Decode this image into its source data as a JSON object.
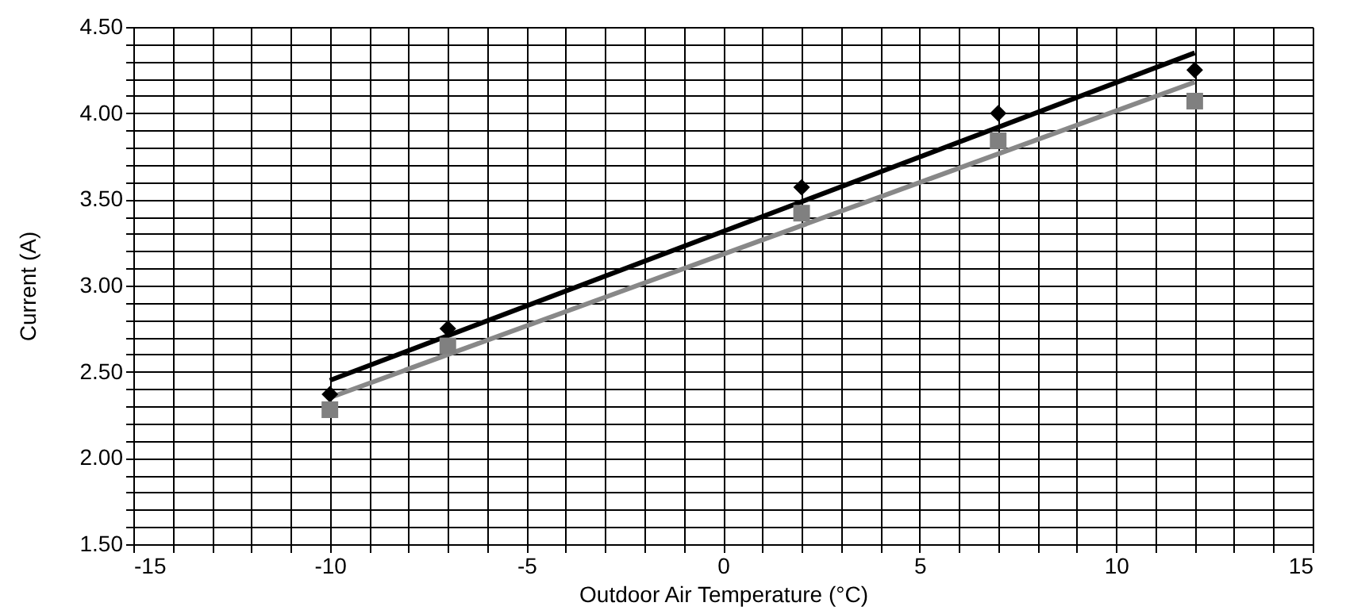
{
  "chart_data": {
    "type": "scatter",
    "xlabel": "Outdoor Air Temperature (°C)",
    "ylabel": "Current (A)",
    "xlim": [
      -15,
      15
    ],
    "ylim": [
      1.5,
      4.5
    ],
    "xticks": [
      -15,
      {
        "value": -14,
        "label": null
      },
      {
        "value": -13,
        "label": null
      },
      {
        "value": -12,
        "label": null
      },
      {
        "value": -11,
        "label": null
      },
      -10,
      {
        "value": -9,
        "label": null
      },
      {
        "value": -8,
        "label": null
      },
      {
        "value": -7,
        "label": null
      },
      {
        "value": -6,
        "label": null
      },
      -5,
      {
        "value": -4,
        "label": null
      },
      {
        "value": -3,
        "label": null
      },
      {
        "value": -2,
        "label": null
      },
      {
        "value": -1,
        "label": null
      },
      0,
      {
        "value": 1,
        "label": null
      },
      {
        "value": 2,
        "label": null
      },
      {
        "value": 3,
        "label": null
      },
      {
        "value": 4,
        "label": null
      },
      5,
      {
        "value": 6,
        "label": null
      },
      {
        "value": 7,
        "label": null
      },
      {
        "value": 8,
        "label": null
      },
      {
        "value": 9,
        "label": null
      },
      10,
      {
        "value": 11,
        "label": null
      },
      {
        "value": 12,
        "label": null
      },
      {
        "value": 13,
        "label": null
      },
      {
        "value": 14,
        "label": null
      },
      15
    ],
    "yticks": [
      {
        "value": 1.5,
        "label": "1.50"
      },
      {
        "value": 1.6,
        "label": null
      },
      {
        "value": 1.7,
        "label": null
      },
      {
        "value": 1.8,
        "label": null
      },
      {
        "value": 1.9,
        "label": null
      },
      {
        "value": 2.0,
        "label": "2.00"
      },
      {
        "value": 2.1,
        "label": null
      },
      {
        "value": 2.2,
        "label": null
      },
      {
        "value": 2.3,
        "label": null
      },
      {
        "value": 2.4,
        "label": null
      },
      {
        "value": 2.5,
        "label": "2.50"
      },
      {
        "value": 2.6,
        "label": null
      },
      {
        "value": 2.7,
        "label": null
      },
      {
        "value": 2.8,
        "label": null
      },
      {
        "value": 2.9,
        "label": null
      },
      {
        "value": 3.0,
        "label": "3.00"
      },
      {
        "value": 3.1,
        "label": null
      },
      {
        "value": 3.2,
        "label": null
      },
      {
        "value": 3.3,
        "label": null
      },
      {
        "value": 3.4,
        "label": null
      },
      {
        "value": 3.5,
        "label": "3.50"
      },
      {
        "value": 3.6,
        "label": null
      },
      {
        "value": 3.7,
        "label": null
      },
      {
        "value": 3.8,
        "label": null
      },
      {
        "value": 3.9,
        "label": null
      },
      {
        "value": 4.0,
        "label": "4.00"
      },
      {
        "value": 4.1,
        "label": null
      },
      {
        "value": 4.2,
        "label": null
      },
      {
        "value": 4.3,
        "label": null
      },
      {
        "value": 4.4,
        "label": null
      },
      {
        "value": 4.5,
        "label": "4.50"
      }
    ],
    "grid": true,
    "series": [
      {
        "type": "line",
        "color": "#000000",
        "marker": "none",
        "x": [
          -10,
          12
        ],
        "values": [
          2.45,
          4.35
        ]
      },
      {
        "type": "line",
        "color": "#888888",
        "marker": "none",
        "x": [
          -10,
          12
        ],
        "values": [
          2.35,
          4.18
        ]
      },
      {
        "color": "#000000",
        "marker": "diamond",
        "x": [
          -10,
          -7,
          2,
          7,
          12
        ],
        "values": [
          2.37,
          2.75,
          3.57,
          4.0,
          4.25
        ]
      },
      {
        "color": "#808080",
        "marker": "square",
        "x": [
          -10,
          -7,
          2,
          7,
          12
        ],
        "values": [
          2.28,
          2.65,
          3.42,
          3.84,
          4.07
        ]
      }
    ]
  }
}
